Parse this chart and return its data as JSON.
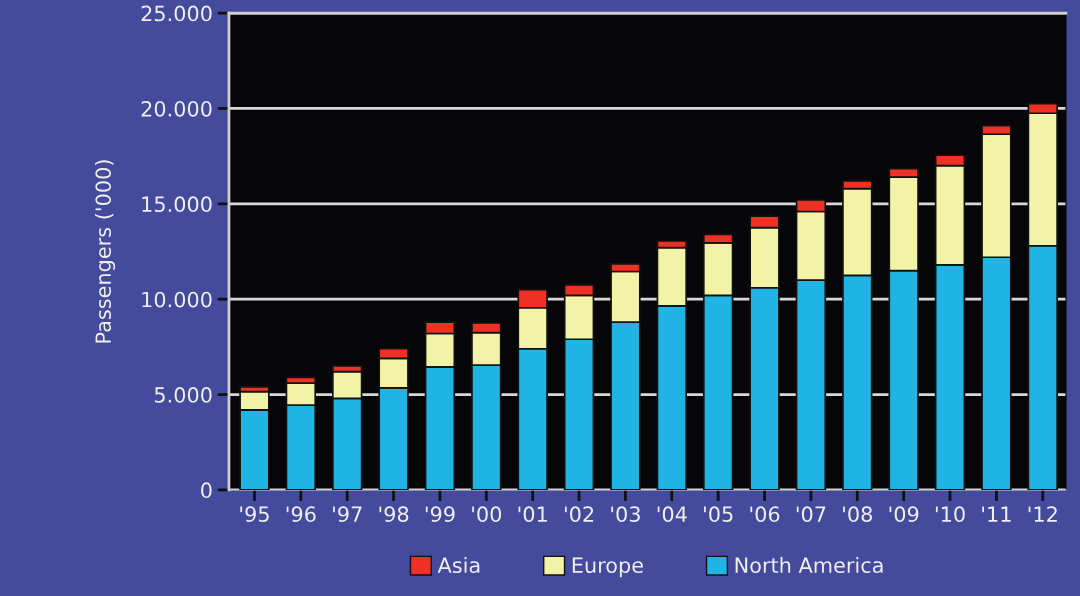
{
  "chart_data": {
    "type": "bar",
    "stacked": true,
    "ylabel": "Passengers ('000)",
    "categories": [
      "'95",
      "'96",
      "'97",
      "'98",
      "'99",
      "'00",
      "'01",
      "'02",
      "'03",
      "'04",
      "'05",
      "'06",
      "'07",
      "'08",
      "'09",
      "'10",
      "'11",
      "'12"
    ],
    "series": [
      {
        "name": "North America",
        "color": "#1fb4e4",
        "values": [
          4200,
          4450,
          4800,
          5350,
          6450,
          6550,
          7400,
          7900,
          8800,
          9650,
          10200,
          10600,
          11000,
          11250,
          11500,
          11800,
          12200,
          12800
        ]
      },
      {
        "name": "Europe",
        "color": "#f3f3a8",
        "values": [
          950,
          1150,
          1400,
          1550,
          1750,
          1700,
          2150,
          2300,
          2650,
          3050,
          2750,
          3150,
          3600,
          4550,
          4900,
          5200,
          6450,
          6950
        ]
      },
      {
        "name": "Asia",
        "color": "#ee3124",
        "values": [
          250,
          300,
          300,
          500,
          600,
          500,
          950,
          550,
          400,
          350,
          450,
          600,
          600,
          400,
          450,
          550,
          450,
          500
        ]
      }
    ],
    "ylim": [
      0,
      25000
    ],
    "yticks": [
      0,
      {
        "value": 5000,
        "label": "5.000"
      },
      {
        "value": 10000,
        "label": "10.000"
      },
      {
        "value": 15000,
        "label": "15.000"
      },
      {
        "value": 20000,
        "label": "20.000"
      },
      {
        "value": 25000,
        "label": "25.000"
      }
    ],
    "grid": "y",
    "legend": "bottom"
  }
}
